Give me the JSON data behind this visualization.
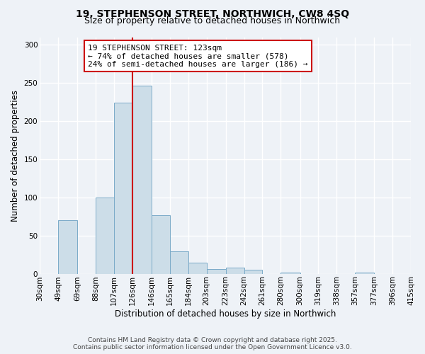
{
  "title_line1": "19, STEPHENSON STREET, NORTHWICH, CW8 4SQ",
  "title_line2": "Size of property relative to detached houses in Northwich",
  "xlabel": "Distribution of detached houses by size in Northwich",
  "ylabel": "Number of detached properties",
  "bin_edges": [
    30,
    49,
    69,
    88,
    107,
    126,
    146,
    165,
    184,
    203,
    223,
    242,
    261,
    280,
    300,
    319,
    338,
    357,
    377,
    396,
    415
  ],
  "bin_counts": [
    0,
    70,
    0,
    100,
    224,
    246,
    77,
    29,
    14,
    6,
    8,
    5,
    0,
    1,
    0,
    0,
    0,
    1,
    0,
    0
  ],
  "bar_facecolor": "#ccdde8",
  "bar_edgecolor": "#7aaac8",
  "vline_x": 126,
  "vline_color": "#cc0000",
  "annotation_title": "19 STEPHENSON STREET: 123sqm",
  "annotation_line2": "← 74% of detached houses are smaller (578)",
  "annotation_line3": "24% of semi-detached houses are larger (186) →",
  "annotation_box_color": "#cc0000",
  "xlim": [
    30,
    415
  ],
  "ylim": [
    0,
    310
  ],
  "yticks": [
    0,
    50,
    100,
    150,
    200,
    250,
    300
  ],
  "xtick_labels": [
    "30sqm",
    "49sqm",
    "69sqm",
    "88sqm",
    "107sqm",
    "126sqm",
    "146sqm",
    "165sqm",
    "184sqm",
    "203sqm",
    "223sqm",
    "242sqm",
    "261sqm",
    "280sqm",
    "300sqm",
    "319sqm",
    "338sqm",
    "357sqm",
    "377sqm",
    "396sqm",
    "415sqm"
  ],
  "footer_line1": "Contains HM Land Registry data © Crown copyright and database right 2025.",
  "footer_line2": "Contains public sector information licensed under the Open Government Licence v3.0.",
  "background_color": "#eef2f7",
  "grid_color": "#ffffff",
  "title_fontsize": 10,
  "subtitle_fontsize": 9,
  "axis_label_fontsize": 8.5,
  "tick_fontsize": 7.5,
  "annotation_fontsize": 8,
  "footer_fontsize": 6.5
}
